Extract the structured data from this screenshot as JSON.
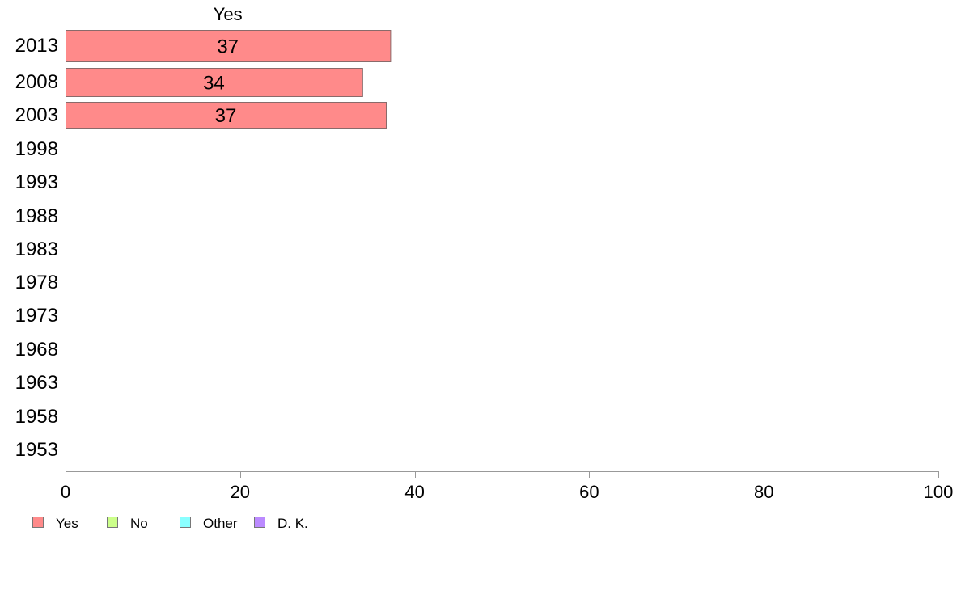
{
  "chart_data": {
    "type": "bar",
    "orientation": "horizontal",
    "stacked": true,
    "categories": [
      "2013",
      "2008",
      "2003",
      "1998",
      "1993",
      "1988",
      "1983",
      "1978",
      "1973",
      "1968",
      "1963",
      "1958",
      "1953"
    ],
    "series": [
      {
        "name": "Yes",
        "color": "#ff8a8a",
        "values": [
          37.2,
          34,
          36.7,
          null,
          null,
          null,
          null,
          null,
          null,
          null,
          null,
          null,
          null
        ]
      },
      {
        "name": "No",
        "color": "#ccff8a",
        "values": [
          null,
          null,
          null,
          null,
          null,
          null,
          null,
          null,
          null,
          null,
          null,
          null,
          null
        ]
      },
      {
        "name": "Other",
        "color": "#8affff",
        "values": [
          null,
          null,
          null,
          null,
          null,
          null,
          null,
          null,
          null,
          null,
          null,
          null,
          null
        ]
      },
      {
        "name": "D. K.",
        "color": "#bb8aff",
        "values": [
          null,
          null,
          null,
          null,
          null,
          null,
          null,
          null,
          null,
          null,
          null,
          null,
          null
        ]
      }
    ],
    "data_labels": [
      "37",
      "34",
      "37",
      "",
      "",
      "",
      "",
      "",
      "",
      "",
      "",
      "",
      ""
    ],
    "column_header": "Yes",
    "xlim": [
      0,
      100
    ],
    "xticks": [
      "0",
      "20",
      "40",
      "60",
      "80",
      "100"
    ],
    "grid": false,
    "legend_position": "bottom-left"
  }
}
